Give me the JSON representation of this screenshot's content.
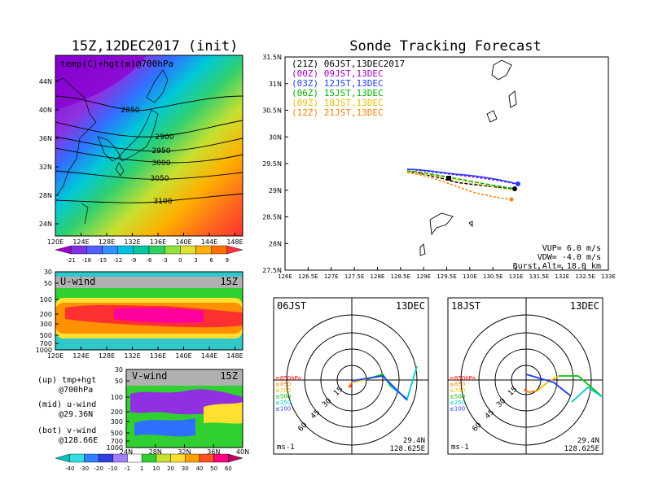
{
  "left": {
    "title": "15Z,12DEC2017 (init)",
    "map_label": "temp(C)+hgt(m)@700hPa",
    "lat_ticks": [
      "44N",
      "40N",
      "36N",
      "32N",
      "28N",
      "24N"
    ],
    "lon_ticks": [
      "120E",
      "124E",
      "128E",
      "132E",
      "136E",
      "140E",
      "144E",
      "148E"
    ],
    "contours": [
      "2850",
      "2900",
      "2950",
      "3000",
      "3050",
      "3100"
    ],
    "temp_colorbar": [
      "-21",
      "-18",
      "-15",
      "-12",
      "-9",
      "-6",
      "-3",
      "0",
      "3",
      "6",
      "9"
    ],
    "uwind_label": "U-wind",
    "uwind_time": "15Z",
    "p_ticks": [
      "30",
      "50",
      "100",
      "200",
      "300",
      "500",
      "700",
      "1000"
    ],
    "vwind_label": "V-wind",
    "vwind_time": "15Z",
    "vwind_lat_ticks": [
      "24N",
      "28N",
      "32N",
      "36N",
      "40N"
    ],
    "wind_colorbar": [
      "-40",
      "-30",
      "-20",
      "-10",
      "-1",
      "1",
      "10",
      "20",
      "30",
      "40",
      "50",
      "60"
    ],
    "legend": {
      "up1": "(up) tmp+hgt",
      "up2": "@700hPa",
      "mid1": "(mid) u-wind",
      "mid2": "@29.36N",
      "bot1": "(bot) v-wind",
      "bot2": "@128.66E"
    }
  },
  "right": {
    "title": "Sonde Tracking Forecast",
    "lat_ticks": [
      "31.5N",
      "31N",
      "30.5N",
      "30N",
      "29.5N",
      "29N",
      "28.5N",
      "28N",
      "27.5N"
    ],
    "lon_ticks": [
      "126E",
      "126.5E",
      "127E",
      "127.5E",
      "128E",
      "128.5E",
      "129E",
      "129.5E",
      "130E",
      "130.5E",
      "131E",
      "131.5E",
      "132E",
      "132.5E",
      "133E"
    ],
    "tracks": [
      {
        "label": "(21Z) 06JST,13DEC2017",
        "color": "#000000"
      },
      {
        "label": "(00Z) 09JST,13DEC",
        "color": "#a000c0"
      },
      {
        "label": "(03Z) 12JST,13DEC",
        "color": "#1e3cff"
      },
      {
        "label": "(06Z) 15JST,13DEC",
        "color": "#00b000"
      },
      {
        "label": "(09Z) 18JST,13DEC",
        "color": "#e6c000"
      },
      {
        "label": "(12Z) 21JST,13DEC",
        "color": "#ff8000"
      }
    ],
    "params": {
      "vup": "VUP= 6.0 m/s",
      "vdw": "VDW= -4.0 m/s",
      "burst": "Burst Alt= 18.0 km"
    }
  },
  "hodo1": {
    "time": "06JST",
    "date": "13DEC",
    "lat": "29.4N",
    "lon": "128.625E",
    "unit": "ms-1"
  },
  "hodo2": {
    "time": "18JST",
    "date": "13DEC",
    "lat": "29.4N",
    "lon": "128.625E",
    "unit": "ms-1"
  },
  "hodo_rings": [
    "15",
    "30",
    "45",
    "60"
  ],
  "hodo_levels": [
    {
      "label": "≥850hPa",
      "color": "#ff0000"
    },
    {
      "label": "≤850",
      "color": "#ff8000"
    },
    {
      "label": "≤700",
      "color": "#e6c000"
    },
    {
      "label": "≤500",
      "color": "#00c000"
    },
    {
      "label": "≤250",
      "color": "#00c8c8"
    },
    {
      "label": "≤100",
      "color": "#1e3cff"
    }
  ]
}
